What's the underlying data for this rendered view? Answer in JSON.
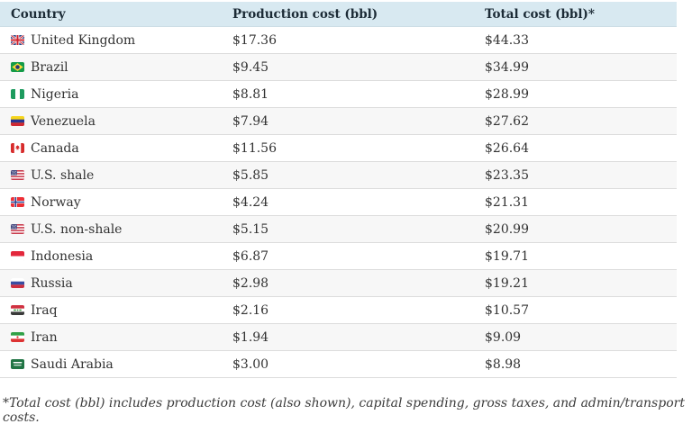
{
  "chart_data": {
    "type": "table",
    "columns": [
      "Country",
      "Production cost (bbl)",
      "Total cost (bbl)*"
    ],
    "rows": [
      {
        "country": "United Kingdom",
        "flag": "gb",
        "flag_icon": "flag-united-kingdom-icon",
        "production": "$17.36",
        "total": "$44.33",
        "production_value": 17.36,
        "total_value": 44.33
      },
      {
        "country": "Brazil",
        "flag": "br",
        "flag_icon": "flag-brazil-icon",
        "production": "$9.45",
        "total": "$34.99",
        "production_value": 9.45,
        "total_value": 34.99
      },
      {
        "country": "Nigeria",
        "flag": "ng",
        "flag_icon": "flag-nigeria-icon",
        "production": "$8.81",
        "total": "$28.99",
        "production_value": 8.81,
        "total_value": 28.99
      },
      {
        "country": "Venezuela",
        "flag": "ve",
        "flag_icon": "flag-venezuela-icon",
        "production": "$7.94",
        "total": "$27.62",
        "production_value": 7.94,
        "total_value": 27.62
      },
      {
        "country": "Canada",
        "flag": "ca",
        "flag_icon": "flag-canada-icon",
        "production": "$11.56",
        "total": "$26.64",
        "production_value": 11.56,
        "total_value": 26.64
      },
      {
        "country": "U.S. shale",
        "flag": "us",
        "flag_icon": "flag-united-states-icon",
        "production": "$5.85",
        "total": "$23.35",
        "production_value": 5.85,
        "total_value": 23.35
      },
      {
        "country": "Norway",
        "flag": "no",
        "flag_icon": "flag-norway-icon",
        "production": "$4.24",
        "total": "$21.31",
        "production_value": 4.24,
        "total_value": 21.31
      },
      {
        "country": "U.S. non-shale",
        "flag": "us",
        "flag_icon": "flag-united-states-icon",
        "production": "$5.15",
        "total": "$20.99",
        "production_value": 5.15,
        "total_value": 20.99
      },
      {
        "country": "Indonesia",
        "flag": "id",
        "flag_icon": "flag-indonesia-icon",
        "production": "$6.87",
        "total": "$19.71",
        "production_value": 6.87,
        "total_value": 19.71
      },
      {
        "country": "Russia",
        "flag": "ru",
        "flag_icon": "flag-russia-icon",
        "production": "$2.98",
        "total": "$19.21",
        "production_value": 2.98,
        "total_value": 19.21
      },
      {
        "country": "Iraq",
        "flag": "iq",
        "flag_icon": "flag-iraq-icon",
        "production": "$2.16",
        "total": "$10.57",
        "production_value": 2.16,
        "total_value": 10.57
      },
      {
        "country": "Iran",
        "flag": "ir",
        "flag_icon": "flag-iran-icon",
        "production": "$1.94",
        "total": "$9.09",
        "production_value": 1.94,
        "total_value": 9.09
      },
      {
        "country": "Saudi Arabia",
        "flag": "sa",
        "flag_icon": "flag-saudi-arabia-icon",
        "production": "$3.00",
        "total": "$8.98",
        "production_value": 3.0,
        "total_value": 8.98
      }
    ],
    "footnote": "*Total cost (bbl) includes production cost (also shown), capital spending, gross taxes, and admin/transport costs.",
    "legend_position": "none",
    "grid": "row-separators"
  },
  "colors": {
    "header_bg": "#d8e9f1",
    "header_text": "#1c2b36",
    "row_bg": "#ffffff",
    "row_alt_bg": "#f7f7f7",
    "row_border": "#dcdcdc",
    "body_text": "#323232",
    "footnote_text": "#3c3c3c"
  }
}
